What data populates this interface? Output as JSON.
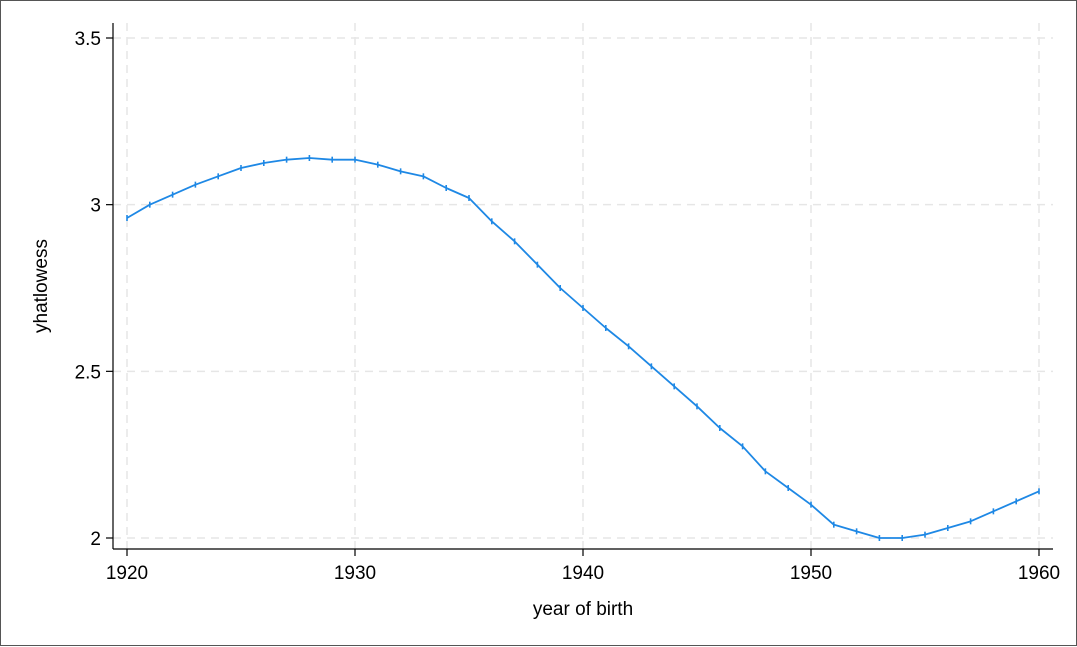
{
  "chart_data": {
    "type": "line",
    "title": "",
    "xlabel": "year of birth",
    "ylabel": "yhatlowess",
    "xlim": [
      1920,
      1960
    ],
    "ylim": [
      2,
      3.5
    ],
    "x_ticks": [
      "1920",
      "1930",
      "1940",
      "1950",
      "1960"
    ],
    "y_ticks": [
      "2",
      "2.5",
      "3",
      "3.5"
    ],
    "grid": true,
    "legend": "none",
    "series": [
      {
        "color": "#1e88e5",
        "x": [
          1920,
          1921,
          1922,
          1923,
          1924,
          1925,
          1926,
          1927,
          1928,
          1929,
          1930,
          1931,
          1932,
          1933,
          1934,
          1935,
          1936,
          1937,
          1938,
          1939,
          1940,
          1941,
          1942,
          1943,
          1944,
          1945,
          1946,
          1947,
          1948,
          1949,
          1950,
          1951,
          1952,
          1953,
          1954,
          1955,
          1956,
          1957,
          1958,
          1959,
          1960
        ],
        "y": [
          2.96,
          3.0,
          3.03,
          3.06,
          3.085,
          3.11,
          3.125,
          3.135,
          3.14,
          3.135,
          3.135,
          3.12,
          3.1,
          3.085,
          3.05,
          3.02,
          2.95,
          2.89,
          2.82,
          2.75,
          2.69,
          2.63,
          2.575,
          2.515,
          2.455,
          2.395,
          2.33,
          2.275,
          2.2,
          2.15,
          2.1,
          2.04,
          2.02,
          2.0,
          2.0,
          2.01,
          2.03,
          2.05,
          2.08,
          2.11,
          2.14
        ]
      }
    ]
  }
}
